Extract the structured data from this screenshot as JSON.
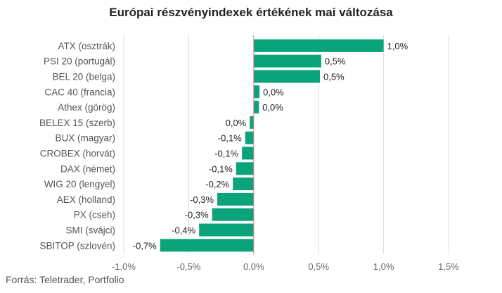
{
  "chart_data": {
    "type": "bar",
    "orientation": "horizontal",
    "title": "Európai részvényindexek értékének mai változása",
    "categories": [
      "ATX (osztrák)",
      "PSI 20 (portugál)",
      "BEL 20 (belga)",
      "CAC 40 (francia)",
      "Athex (görög)",
      "BELEX 15 (szerb)",
      "BUX (magyar)",
      "CROBEX (horvát)",
      "DAX (német)",
      "WIG 20 (lengyel)",
      "AEX (holland)",
      "PX (cseh)",
      "SMI (svájci)",
      "SBITOP (szlovén)"
    ],
    "values": [
      1.0,
      0.52,
      0.51,
      0.045,
      0.04,
      -0.03,
      -0.065,
      -0.09,
      -0.135,
      -0.16,
      -0.28,
      -0.32,
      -0.42,
      -0.72
    ],
    "value_labels": [
      "1,0%",
      "0,5%",
      "0,5%",
      "0,0%",
      "0,0%",
      "0,0%",
      "-0,1%",
      "-0,1%",
      "-0,1%",
      "-0,2%",
      "-0,3%",
      "-0,3%",
      "-0,4%",
      "-0,7%"
    ],
    "xlim": [
      -1.0,
      1.5
    ],
    "x_ticks": [
      -1.0,
      -0.5,
      0.0,
      0.5,
      1.0,
      1.5
    ],
    "x_tick_labels": [
      "-1,0%",
      "-0,5%",
      "0,0%",
      "0,5%",
      "1,0%",
      "1,5%"
    ],
    "grid": "vertical",
    "zero_line_color": "#e08080",
    "bar_color": "#0aa37a",
    "legend": "none"
  },
  "source": "Forrás: Teletrader, Portfolio"
}
